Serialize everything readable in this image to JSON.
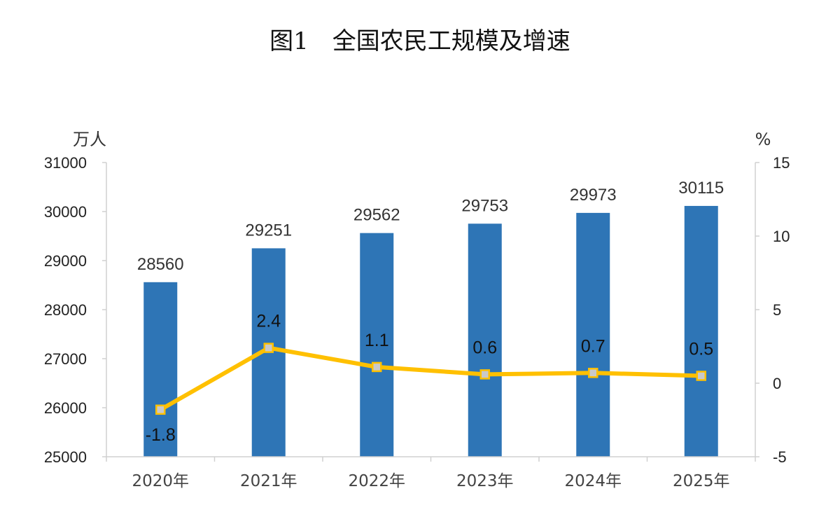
{
  "chart_data": {
    "type": "bar",
    "title": "图1　全国农民工规模及增速",
    "categories": [
      "2020年",
      "2021年",
      "2022年",
      "2023年",
      "2024年",
      "2025年"
    ],
    "series": [
      {
        "type": "bar",
        "axis": "left",
        "color": "#2E75B6",
        "values": [
          28560,
          29251,
          29562,
          29753,
          29973,
          30115
        ]
      },
      {
        "type": "line",
        "axis": "right",
        "color": "#FFC000",
        "marker_color": "#C9C9C9",
        "values": [
          -1.8,
          2.4,
          1.1,
          0.6,
          0.7,
          0.5
        ]
      }
    ],
    "y_left": {
      "unit": "万人",
      "min": 25000,
      "max": 31000,
      "ticks": [
        25000,
        26000,
        27000,
        28000,
        29000,
        30000,
        31000
      ]
    },
    "y_right": {
      "unit": "%",
      "min": -5,
      "max": 15,
      "ticks": [
        -5,
        0,
        5,
        10,
        15
      ]
    },
    "grid": false,
    "legend": "none"
  }
}
